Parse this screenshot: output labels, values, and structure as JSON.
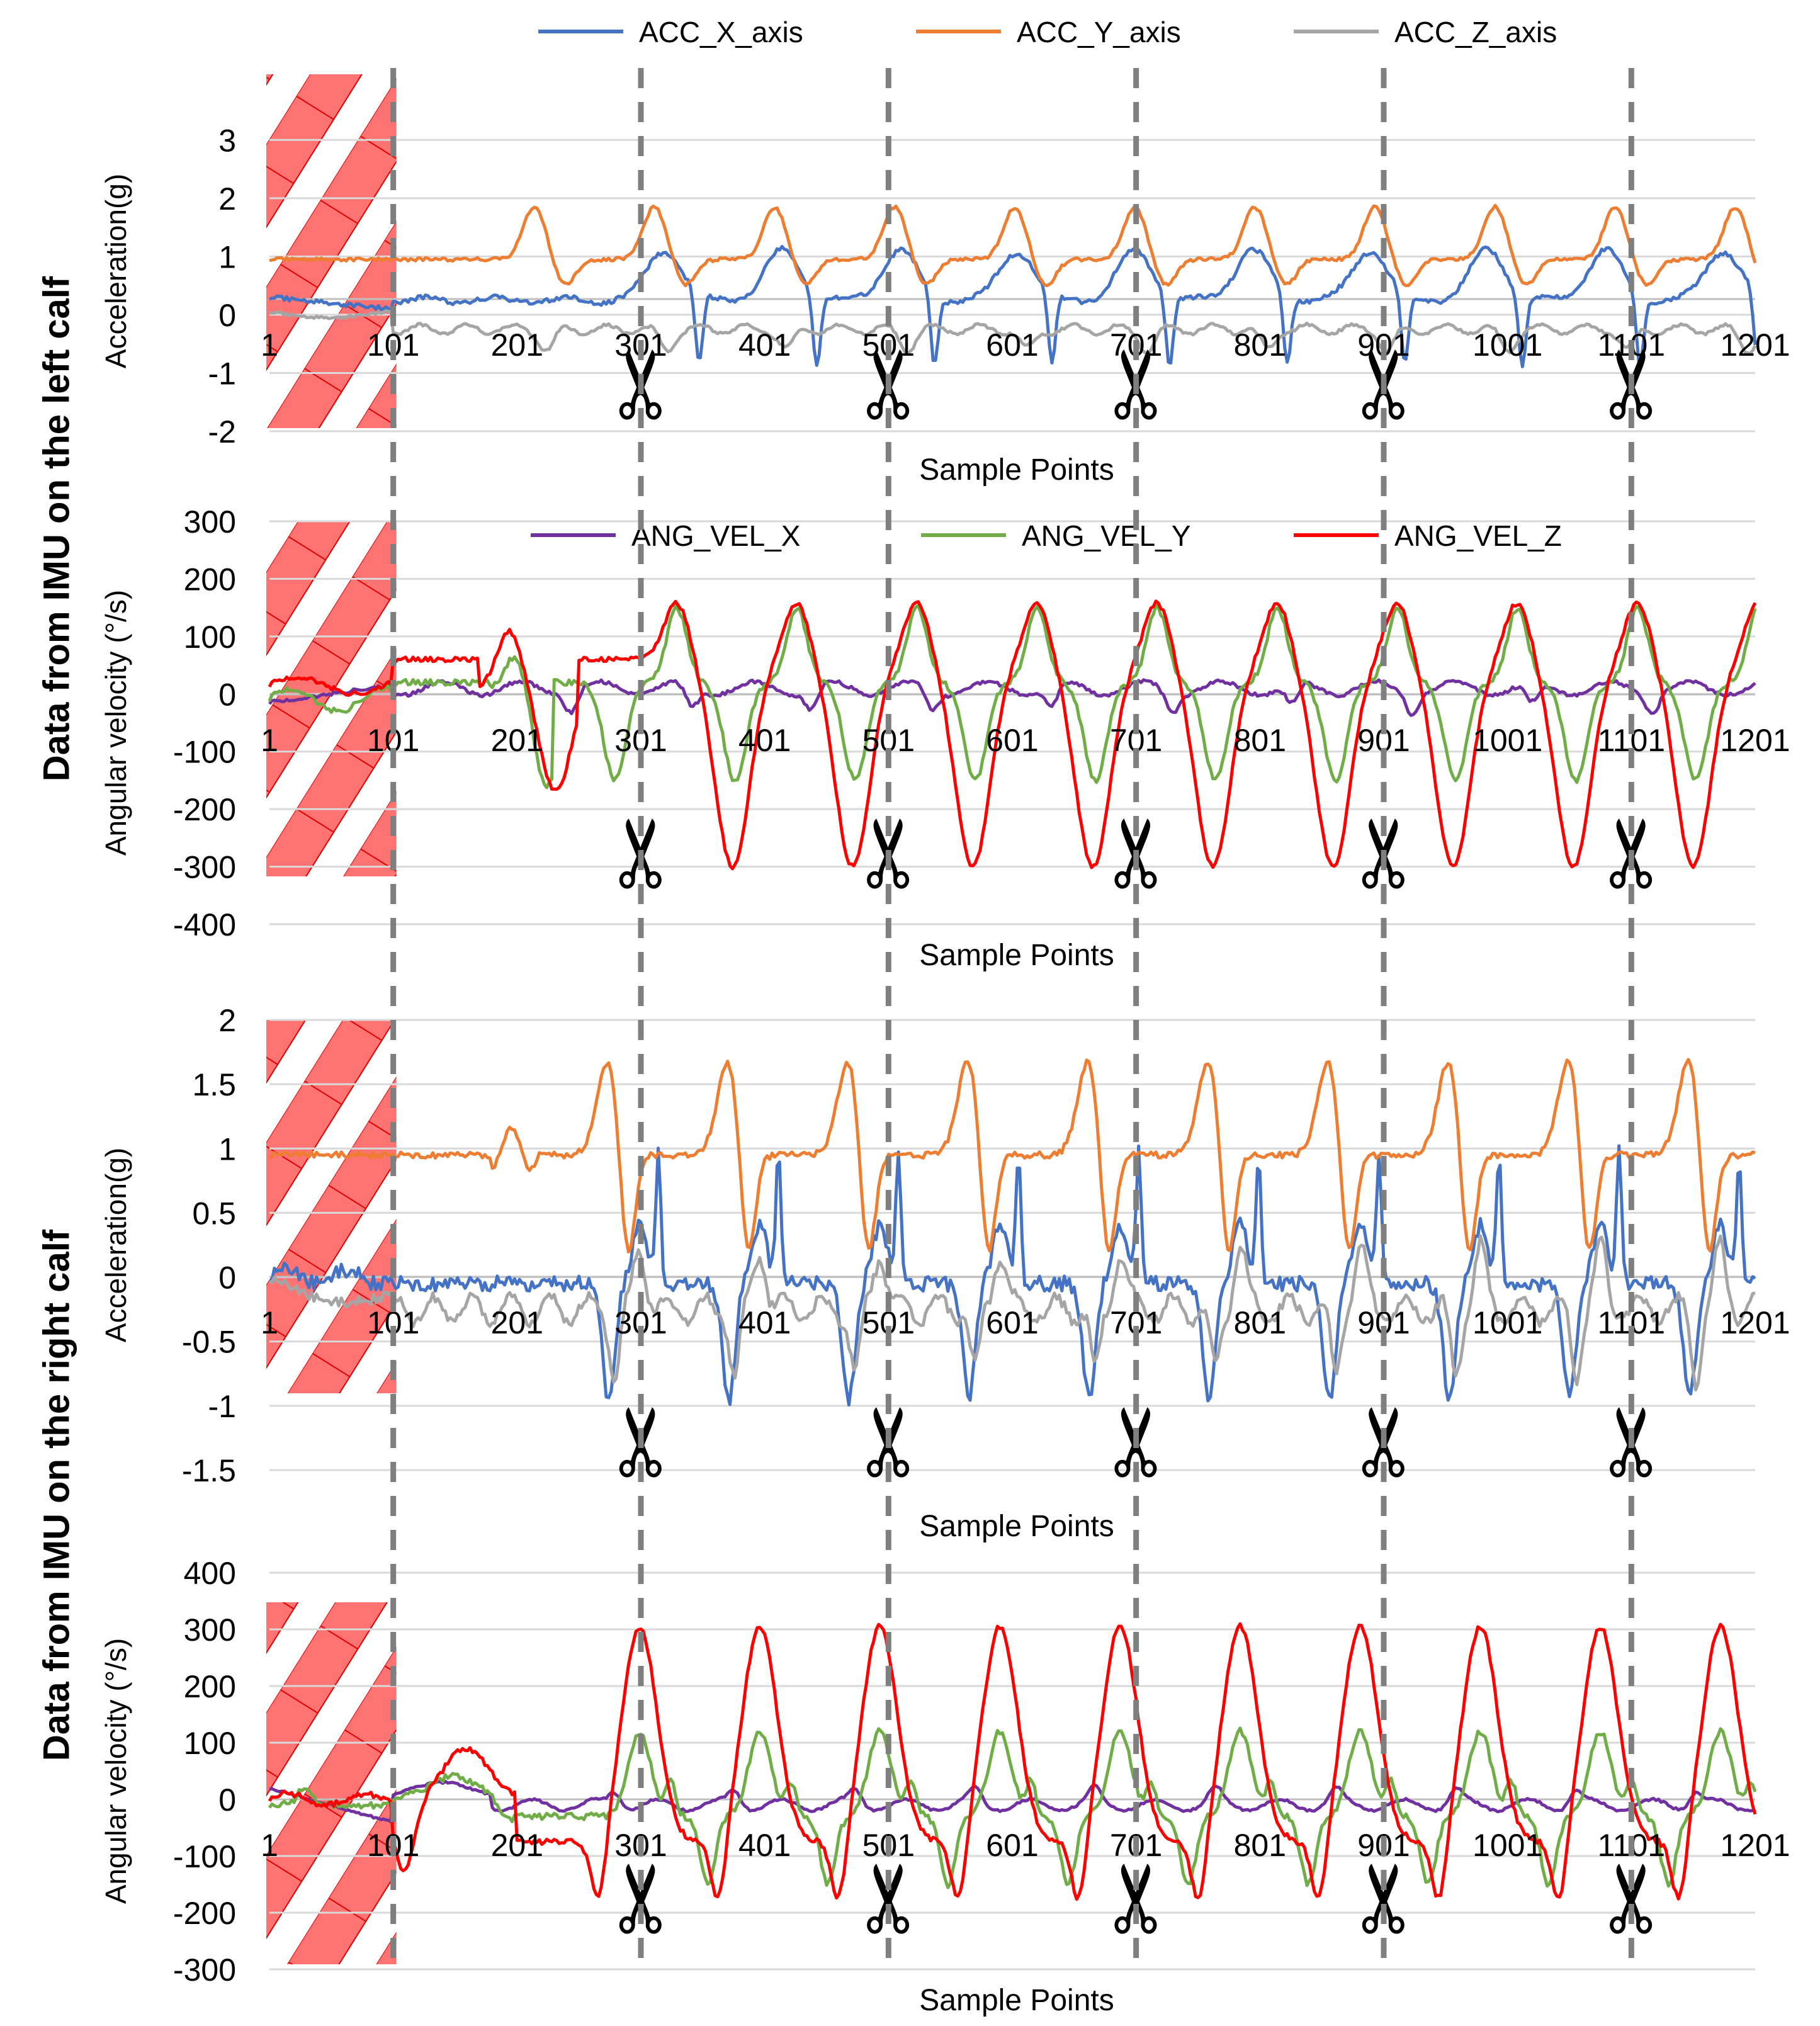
{
  "figure": {
    "group_labels": [
      "Data from IMU on the left calf",
      "Data from IMU on the right calf"
    ],
    "segment_boundaries": [
      101,
      301,
      501,
      701,
      901,
      1101
    ],
    "cut_markers": [
      301,
      501,
      701,
      901,
      1101
    ],
    "discarded_range": [
      1,
      101
    ],
    "colors": {
      "ACC_X_axis": "#4472C4",
      "ACC_Y_axis": "#ED7D31",
      "ACC_Z_axis": "#A5A5A5",
      "ANG_VEL_X": "#7030A0",
      "ANG_VEL_Y": "#70AD47",
      "ANG_VEL_Z": "#FF0000",
      "hatch": "#FF5050",
      "boundary_line": "#7F7F7F",
      "grid": "#D9D9D9"
    }
  },
  "chart_data": [
    {
      "type": "line",
      "panel": "left-acceleration",
      "xlabel": "Sample Points",
      "ylabel": "Acceleration(g)",
      "ylim": [
        -2,
        3.5
      ],
      "yticks": [
        3,
        2,
        1,
        0,
        -1,
        -2
      ],
      "xticks": [
        1,
        101,
        201,
        301,
        401,
        501,
        601,
        701,
        801,
        901,
        1001,
        1101,
        1201
      ],
      "legend": [
        "ACC_X_axis",
        "ACC_Y_axis",
        "ACC_Z_axis"
      ],
      "series": [
        {
          "name": "ACC_X_axis",
          "kind": "accx_left"
        },
        {
          "name": "ACC_Y_axis",
          "kind": "accy_left"
        },
        {
          "name": "ACC_Z_axis",
          "kind": "accz_left"
        }
      ]
    },
    {
      "type": "line",
      "panel": "left-angular-velocity",
      "xlabel": "Sample Points",
      "ylabel": "Angular velocity (°/s)",
      "ylim": [
        -400,
        300
      ],
      "yticks": [
        300,
        200,
        100,
        0,
        -100,
        -200,
        -300,
        -400
      ],
      "xticks": [
        1,
        101,
        201,
        301,
        401,
        501,
        601,
        701,
        801,
        901,
        1001,
        1101,
        1201
      ],
      "legend": [
        "ANG_VEL_X",
        "ANG_VEL_Y",
        "ANG_VEL_Z"
      ],
      "series": [
        {
          "name": "ANG_VEL_X",
          "kind": "gx_left"
        },
        {
          "name": "ANG_VEL_Y",
          "kind": "gy_left"
        },
        {
          "name": "ANG_VEL_Z",
          "kind": "gz_left"
        }
      ]
    },
    {
      "type": "line",
      "panel": "right-acceleration",
      "xlabel": "Sample Points",
      "ylabel": "Acceleration(g)",
      "ylim": [
        -1.5,
        2
      ],
      "yticks": [
        2,
        1.5,
        1,
        0.5,
        0,
        -0.5,
        -1,
        -1.5
      ],
      "xticks": [
        1,
        101,
        201,
        301,
        401,
        501,
        601,
        701,
        801,
        901,
        1001,
        1101,
        1201
      ],
      "series": [
        {
          "name": "ACC_X_axis",
          "kind": "accx_right"
        },
        {
          "name": "ACC_Y_axis",
          "kind": "accy_right"
        },
        {
          "name": "ACC_Z_axis",
          "kind": "accz_right"
        }
      ]
    },
    {
      "type": "line",
      "panel": "right-angular-velocity",
      "xlabel": "Sample Points",
      "ylabel": "Angular velocity (°/s)",
      "ylim": [
        -300,
        400
      ],
      "yticks": [
        400,
        300,
        200,
        100,
        0,
        -100,
        -200,
        -300
      ],
      "xticks": [
        1,
        101,
        201,
        301,
        401,
        501,
        601,
        701,
        801,
        901,
        1001,
        1101,
        1201
      ],
      "series": [
        {
          "name": "ANG_VEL_X",
          "kind": "gx_right"
        },
        {
          "name": "ANG_VEL_Y",
          "kind": "gy_right"
        },
        {
          "name": "ANG_VEL_Z",
          "kind": "gz_right"
        }
      ]
    }
  ]
}
